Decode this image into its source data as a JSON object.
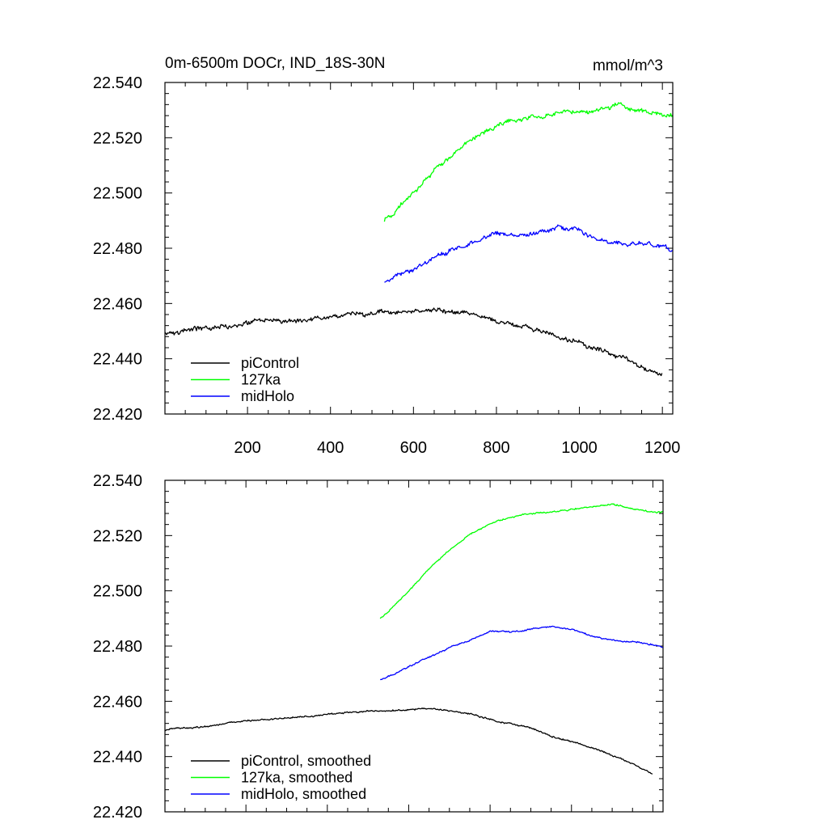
{
  "figure": {
    "title_left": "0m-6500m DOCr, IND_18S-30N",
    "title_right": "mmol/m^3"
  },
  "chart_data": [
    {
      "id": "top",
      "type": "line",
      "title": "0m-6500m DOCr, IND_18S-30N",
      "units": "mmol/m^3",
      "xlim": [
        1,
        1225
      ],
      "ylim": [
        22.42,
        22.54
      ],
      "xticks": [
        200,
        400,
        600,
        800,
        1000,
        1200
      ],
      "xtick_labels": [
        "200",
        "400",
        "600",
        "800",
        "1000",
        "1200"
      ],
      "yticks": [
        22.42,
        22.44,
        22.46,
        22.48,
        22.5,
        22.52,
        22.54
      ],
      "ytick_labels": [
        "22.420",
        "22.440",
        "22.460",
        "22.480",
        "22.500",
        "22.520",
        "22.540"
      ],
      "legend_position": "bottom-left",
      "series": [
        {
          "name": "piControl",
          "color": "#000000",
          "noise": 0.0012,
          "x": [
            1,
            50,
            100,
            150,
            200,
            250,
            300,
            350,
            400,
            450,
            500,
            550,
            600,
            650,
            700,
            750,
            800,
            850,
            900,
            950,
            1000,
            1050,
            1100,
            1150,
            1200
          ],
          "y": [
            22.4495,
            22.4505,
            22.451,
            22.452,
            22.453,
            22.4535,
            22.454,
            22.4545,
            22.4555,
            22.456,
            22.4565,
            22.4565,
            22.457,
            22.4575,
            22.4565,
            22.4555,
            22.4535,
            22.452,
            22.4505,
            22.4475,
            22.4455,
            22.443,
            22.4405,
            22.4375,
            22.4335
          ]
        },
        {
          "name": "127ka",
          "color": "#00ff00",
          "noise": 0.0012,
          "x": [
            530,
            550,
            600,
            650,
            700,
            750,
            800,
            850,
            900,
            950,
            1000,
            1050,
            1100,
            1150,
            1200,
            1225
          ],
          "y": [
            22.49,
            22.4925,
            22.5,
            22.508,
            22.5145,
            22.5205,
            22.5245,
            22.5265,
            22.528,
            22.5285,
            22.5295,
            22.5305,
            22.5315,
            22.5295,
            22.5285,
            22.5285
          ]
        },
        {
          "name": "midHolo",
          "color": "#0000ff",
          "noise": 0.0012,
          "x": [
            530,
            550,
            600,
            650,
            700,
            750,
            800,
            850,
            900,
            950,
            1000,
            1050,
            1100,
            1150,
            1200,
            1225
          ],
          "y": [
            22.4675,
            22.469,
            22.4725,
            22.476,
            22.4795,
            22.482,
            22.4855,
            22.485,
            22.486,
            22.4872,
            22.486,
            22.4835,
            22.482,
            22.4815,
            22.4805,
            22.4795
          ]
        }
      ]
    },
    {
      "id": "bottom",
      "type": "line",
      "xlim": [
        1,
        1225
      ],
      "ylim": [
        22.42,
        22.54
      ],
      "xticks": [
        200,
        400,
        600,
        800,
        1000,
        1200
      ],
      "yticks": [
        22.42,
        22.44,
        22.46,
        22.48,
        22.5,
        22.52,
        22.54
      ],
      "ytick_labels": [
        "22.420",
        "22.440",
        "22.460",
        "22.480",
        "22.500",
        "22.520",
        "22.540"
      ],
      "legend_position": "bottom-left",
      "series": [
        {
          "name": "piControl, smoothed",
          "color": "#000000",
          "noise": 0.0004,
          "x": [
            1,
            50,
            100,
            150,
            200,
            250,
            300,
            350,
            400,
            450,
            500,
            550,
            600,
            650,
            700,
            750,
            800,
            850,
            900,
            950,
            1000,
            1050,
            1100,
            1150,
            1200
          ],
          "y": [
            22.4495,
            22.4505,
            22.451,
            22.452,
            22.453,
            22.4535,
            22.454,
            22.4545,
            22.4555,
            22.456,
            22.4565,
            22.4565,
            22.457,
            22.4575,
            22.4565,
            22.4555,
            22.4535,
            22.452,
            22.4505,
            22.4475,
            22.4455,
            22.443,
            22.4405,
            22.4375,
            22.4335
          ]
        },
        {
          "name": "127ka, smoothed",
          "color": "#00ff00",
          "noise": 0.0004,
          "x": [
            530,
            550,
            600,
            650,
            700,
            750,
            800,
            850,
            900,
            950,
            1000,
            1050,
            1100,
            1150,
            1200,
            1225
          ],
          "y": [
            22.49,
            22.4925,
            22.5,
            22.508,
            22.5145,
            22.5205,
            22.5245,
            22.5265,
            22.528,
            22.5285,
            22.5295,
            22.5305,
            22.5315,
            22.5295,
            22.5285,
            22.5285
          ]
        },
        {
          "name": "midHolo, smoothed",
          "color": "#0000ff",
          "noise": 0.0004,
          "x": [
            530,
            550,
            600,
            650,
            700,
            750,
            800,
            850,
            900,
            950,
            1000,
            1050,
            1100,
            1150,
            1200,
            1225
          ],
          "y": [
            22.468,
            22.469,
            22.4725,
            22.476,
            22.4795,
            22.482,
            22.4855,
            22.485,
            22.486,
            22.4872,
            22.486,
            22.4835,
            22.482,
            22.4815,
            22.4805,
            22.4795
          ]
        }
      ]
    }
  ]
}
